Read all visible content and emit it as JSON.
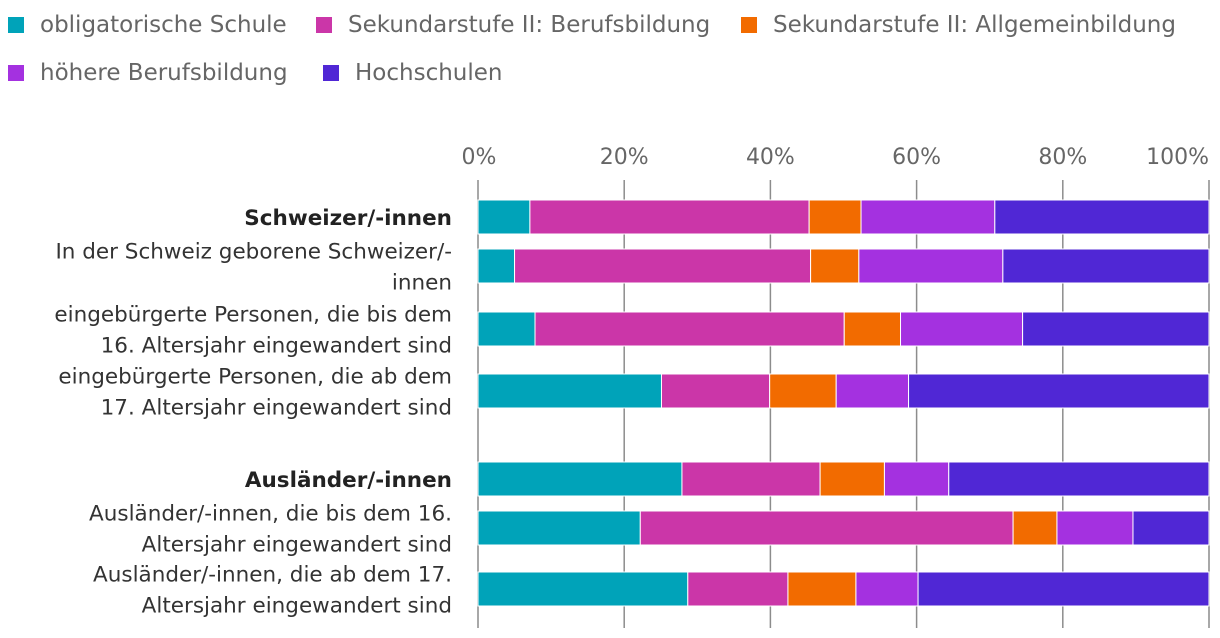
{
  "chart_data": {
    "type": "bar",
    "orientation": "horizontal",
    "stacked": true,
    "xlim": [
      0,
      100
    ],
    "x_ticks": [
      "0%",
      "20%",
      "40%",
      "60%",
      "80%",
      "100%"
    ],
    "legend_position": "top",
    "grid": true,
    "series": [
      {
        "name": "obligatorische Schule",
        "color": "#00a3b9"
      },
      {
        "name": "Sekundarstufe II: Berufsbildung",
        "color": "#cb36a8"
      },
      {
        "name": "Sekundarstufe II: Allgemeinbildung",
        "color": "#f26b00"
      },
      {
        "name": "höhere Berufsbildung",
        "color": "#a431e0"
      },
      {
        "name": "Hochschulen",
        "color": "#5027d5"
      }
    ],
    "categories": [
      {
        "label": [
          "Schweizer/-innen"
        ],
        "bold": true,
        "values": [
          7.1,
          38.2,
          7.1,
          18.3,
          29.3
        ]
      },
      {
        "label": [
          "In der Schweiz geborene Schweizer/-",
          "innen"
        ],
        "bold": false,
        "values": [
          5.0,
          40.5,
          6.6,
          19.7,
          28.2
        ]
      },
      {
        "label": [
          "eingebürgerte Personen, die bis dem",
          "16. Altersjahr eingewandert sind"
        ],
        "bold": false,
        "values": [
          7.8,
          42.3,
          7.7,
          16.7,
          25.5
        ]
      },
      {
        "label": [
          "eingebürgerte Personen, die ab dem",
          "17. Altersjahr eingewandert sind"
        ],
        "bold": false,
        "values": [
          25.1,
          14.8,
          9.1,
          9.9,
          41.1
        ]
      },
      {
        "label": [
          "Ausländer/-innen"
        ],
        "bold": true,
        "values": [
          27.9,
          18.9,
          8.8,
          8.8,
          35.6
        ]
      },
      {
        "label": [
          "Ausländer/-innen, die bis dem 16.",
          "Altersjahr eingewandert sind"
        ],
        "bold": false,
        "values": [
          22.2,
          51.0,
          6.0,
          10.4,
          10.4
        ]
      },
      {
        "label": [
          "Ausländer/-innen, die ab dem 17.",
          "Altersjahr eingewandert sind"
        ],
        "bold": false,
        "values": [
          28.7,
          13.7,
          9.3,
          8.5,
          39.8
        ]
      }
    ]
  }
}
